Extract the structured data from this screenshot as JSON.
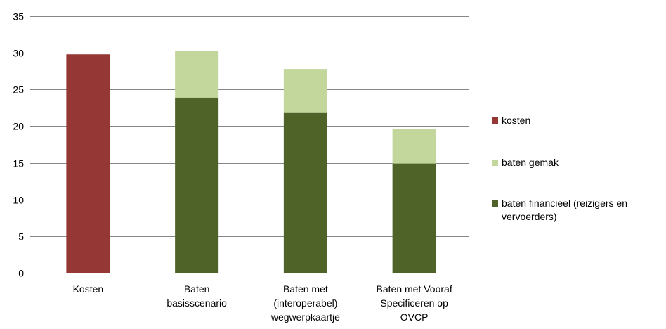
{
  "chart_data": {
    "type": "bar",
    "stacked": true,
    "categories": [
      [
        "Kosten"
      ],
      [
        "Baten",
        "basisscenario"
      ],
      [
        "Baten met",
        "(interoperabel)",
        "wegwerpkaartje"
      ],
      [
        "Baten met Vooraf",
        "Specificeren op",
        "OVCP"
      ]
    ],
    "series": [
      {
        "name": "kosten",
        "color": "#953735",
        "values": [
          29.8,
          0,
          0,
          0
        ]
      },
      {
        "name": "baten financieel (reizigers en vervoerders)",
        "color": "#4f6228",
        "values": [
          0,
          23.9,
          21.8,
          14.9
        ]
      },
      {
        "name": "baten gemak",
        "color": "#c3d69b",
        "values": [
          0,
          6.4,
          6.0,
          4.7
        ]
      }
    ],
    "ylim": [
      0,
      35
    ],
    "yticks": [
      "0",
      "5",
      "10",
      "15",
      "20",
      "25",
      "30",
      "35"
    ],
    "grid": true,
    "legend_position": "right",
    "title": "",
    "xlabel": "",
    "ylabel": ""
  },
  "legend": [
    {
      "label": "kosten",
      "color": "#953735"
    },
    {
      "label": "baten gemak",
      "color": "#c3d69b"
    },
    {
      "label": "baten financieel (reizigers en vervoerders)",
      "color": "#4f6228"
    }
  ]
}
